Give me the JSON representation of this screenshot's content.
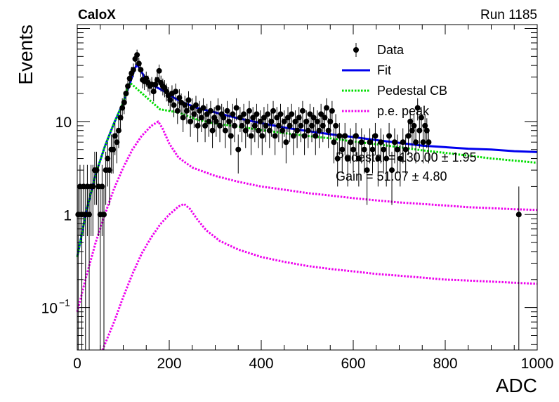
{
  "header": {
    "left_label": "CaloX",
    "right_label": "Run 1185"
  },
  "annotations": {
    "pedestal": "Pedestal = 130.00 ± 1.95",
    "gain": "Gain = 51.07 ± 4.80"
  },
  "colors": {
    "data": "#000000",
    "fit": "#0000ee",
    "pedestal": "#00dd00",
    "pe": "#ee00ee"
  },
  "chart_data": {
    "type": "scatter",
    "xlabel": "ADC",
    "ylabel": "Events",
    "xlim": [
      0,
      1000
    ],
    "ylim": [
      0.035,
      110
    ],
    "yscale": "log",
    "x_ticks": [
      "0",
      "200",
      "400",
      "600",
      "800",
      "1000"
    ],
    "y_ticks": [
      {
        "value": 0.1,
        "label": "10",
        "sup": "−1"
      },
      {
        "value": 1,
        "label": "1",
        "sup": ""
      },
      {
        "value": 10,
        "label": "10",
        "sup": ""
      }
    ],
    "legend": {
      "position": "top-right",
      "entries": [
        {
          "key": "data",
          "label": "Data"
        },
        {
          "key": "fit",
          "label": "Fit"
        },
        {
          "key": "pedestal",
          "label": "Pedestal CB"
        },
        {
          "key": "pe",
          "label": "p.e. peak"
        }
      ]
    },
    "series": [
      {
        "name": "Data",
        "key": "data",
        "kind": "points_with_errors",
        "points": [
          [
            2,
            1
          ],
          [
            6,
            2
          ],
          [
            10,
            1
          ],
          [
            14,
            2
          ],
          [
            18,
            1
          ],
          [
            22,
            2
          ],
          [
            26,
            1
          ],
          [
            30,
            2
          ],
          [
            34,
            2
          ],
          [
            38,
            3
          ],
          [
            42,
            3
          ],
          [
            46,
            2
          ],
          [
            50,
            1
          ],
          [
            54,
            2
          ],
          [
            58,
            1
          ],
          [
            62,
            3
          ],
          [
            66,
            4
          ],
          [
            70,
            3
          ],
          [
            74,
            5
          ],
          [
            78,
            5
          ],
          [
            82,
            7
          ],
          [
            86,
            6
          ],
          [
            90,
            8
          ],
          [
            94,
            11
          ],
          [
            98,
            14
          ],
          [
            102,
            16
          ],
          [
            106,
            20
          ],
          [
            110,
            24
          ],
          [
            114,
            29
          ],
          [
            118,
            33
          ],
          [
            122,
            36
          ],
          [
            126,
            47
          ],
          [
            130,
            52
          ],
          [
            134,
            42
          ],
          [
            138,
            36
          ],
          [
            142,
            28
          ],
          [
            146,
            27
          ],
          [
            150,
            29
          ],
          [
            154,
            26
          ],
          [
            158,
            24
          ],
          [
            162,
            25
          ],
          [
            166,
            21
          ],
          [
            170,
            25
          ],
          [
            174,
            28
          ],
          [
            178,
            35
          ],
          [
            182,
            26
          ],
          [
            186,
            24
          ],
          [
            190,
            23
          ],
          [
            194,
            21
          ],
          [
            198,
            19
          ],
          [
            202,
            17
          ],
          [
            206,
            20
          ],
          [
            210,
            15
          ],
          [
            214,
            21
          ],
          [
            218,
            13
          ],
          [
            222,
            18
          ],
          [
            226,
            16
          ],
          [
            230,
            11
          ],
          [
            234,
            15
          ],
          [
            238,
            13
          ],
          [
            242,
            17
          ],
          [
            246,
            10
          ],
          [
            250,
            14
          ],
          [
            254,
            12
          ],
          [
            258,
            15
          ],
          [
            262,
            9
          ],
          [
            266,
            13
          ],
          [
            270,
            11
          ],
          [
            274,
            14
          ],
          [
            278,
            9
          ],
          [
            282,
            12
          ],
          [
            286,
            10
          ],
          [
            290,
            13
          ],
          [
            294,
            8
          ],
          [
            298,
            11
          ],
          [
            302,
            10
          ],
          [
            306,
            14
          ],
          [
            310,
            9
          ],
          [
            314,
            12
          ],
          [
            318,
            11
          ],
          [
            322,
            8
          ],
          [
            326,
            13
          ],
          [
            330,
            10
          ],
          [
            334,
            7
          ],
          [
            338,
            12
          ],
          [
            342,
            9
          ],
          [
            346,
            14
          ],
          [
            350,
            5
          ],
          [
            354,
            11
          ],
          [
            358,
            9
          ],
          [
            362,
            12
          ],
          [
            366,
            8
          ],
          [
            370,
            10
          ],
          [
            374,
            13
          ],
          [
            378,
            7
          ],
          [
            382,
            11
          ],
          [
            386,
            9
          ],
          [
            390,
            12
          ],
          [
            394,
            8
          ],
          [
            398,
            10
          ],
          [
            402,
            7
          ],
          [
            406,
            11
          ],
          [
            410,
            9
          ],
          [
            414,
            12
          ],
          [
            418,
            8
          ],
          [
            422,
            10
          ],
          [
            426,
            13
          ],
          [
            430,
            7
          ],
          [
            434,
            11
          ],
          [
            438,
            9
          ],
          [
            442,
            12
          ],
          [
            446,
            8
          ],
          [
            450,
            10
          ],
          [
            454,
            6
          ],
          [
            458,
            11
          ],
          [
            462,
            9
          ],
          [
            466,
            12
          ],
          [
            470,
            7
          ],
          [
            474,
            10
          ],
          [
            478,
            8
          ],
          [
            482,
            11
          ],
          [
            486,
            9
          ],
          [
            490,
            13
          ],
          [
            494,
            7
          ],
          [
            498,
            10
          ],
          [
            502,
            8
          ],
          [
            506,
            12
          ],
          [
            510,
            9
          ],
          [
            514,
            11
          ],
          [
            518,
            7
          ],
          [
            522,
            10
          ],
          [
            526,
            8
          ],
          [
            530,
            12
          ],
          [
            534,
            9
          ],
          [
            538,
            11
          ],
          [
            542,
            14
          ],
          [
            546,
            8
          ],
          [
            550,
            10
          ],
          [
            554,
            13
          ],
          [
            558,
            6
          ],
          [
            562,
            9
          ],
          [
            566,
            4
          ],
          [
            570,
            7
          ],
          [
            576,
            5
          ],
          [
            582,
            7
          ],
          [
            588,
            4
          ],
          [
            594,
            6
          ],
          [
            600,
            5
          ],
          [
            606,
            7
          ],
          [
            612,
            4
          ],
          [
            618,
            6
          ],
          [
            624,
            5
          ],
          [
            630,
            3
          ],
          [
            636,
            6
          ],
          [
            642,
            5
          ],
          [
            648,
            7
          ],
          [
            654,
            4
          ],
          [
            660,
            6
          ],
          [
            666,
            5
          ],
          [
            672,
            4
          ],
          [
            678,
            7
          ],
          [
            684,
            3
          ],
          [
            690,
            6
          ],
          [
            696,
            5
          ],
          [
            702,
            4
          ],
          [
            708,
            6
          ],
          [
            714,
            5
          ],
          [
            720,
            7
          ],
          [
            724,
            10
          ],
          [
            728,
            8
          ],
          [
            732,
            9
          ],
          [
            736,
            6
          ],
          [
            740,
            14
          ],
          [
            744,
            8
          ],
          [
            748,
            11
          ],
          [
            752,
            6
          ],
          [
            756,
            9
          ],
          [
            760,
            8
          ],
          [
            764,
            6
          ],
          [
            960,
            1
          ]
        ]
      },
      {
        "name": "Fit",
        "key": "fit",
        "kind": "line",
        "points": [
          [
            0,
            0.35
          ],
          [
            20,
            1.1
          ],
          [
            40,
            2.7
          ],
          [
            60,
            5.4
          ],
          [
            80,
            9.6
          ],
          [
            100,
            16
          ],
          [
            115,
            26
          ],
          [
            125,
            37
          ],
          [
            130,
            41
          ],
          [
            140,
            34
          ],
          [
            150,
            28
          ],
          [
            160,
            25
          ],
          [
            175,
            23
          ],
          [
            190,
            21
          ],
          [
            210,
            18
          ],
          [
            230,
            16
          ],
          [
            260,
            14
          ],
          [
            300,
            12.5
          ],
          [
            350,
            10.8
          ],
          [
            400,
            9.6
          ],
          [
            450,
            8.6
          ],
          [
            500,
            7.9
          ],
          [
            550,
            7.3
          ],
          [
            600,
            6.8
          ],
          [
            650,
            6.3
          ],
          [
            700,
            5.9
          ],
          [
            750,
            5.5
          ],
          [
            800,
            5.3
          ],
          [
            850,
            5.1
          ],
          [
            900,
            5.0
          ],
          [
            950,
            4.8
          ],
          [
            1000,
            4.7
          ]
        ]
      },
      {
        "name": "Pedestal CB",
        "key": "pedestal",
        "kind": "dotted_line",
        "points": [
          [
            0,
            0.35
          ],
          [
            20,
            1.1
          ],
          [
            40,
            2.7
          ],
          [
            60,
            5.4
          ],
          [
            80,
            9.6
          ],
          [
            100,
            16
          ],
          [
            110,
            23
          ],
          [
            115,
            26
          ],
          [
            180,
            13.5
          ],
          [
            220,
            12.5
          ],
          [
            260,
            10.5
          ],
          [
            300,
            9.5
          ],
          [
            350,
            8.8
          ],
          [
            400,
            8.1
          ],
          [
            450,
            7.5
          ],
          [
            500,
            7.0
          ],
          [
            550,
            6.6
          ],
          [
            600,
            6.1
          ],
          [
            650,
            5.7
          ],
          [
            700,
            5.3
          ],
          [
            750,
            4.9
          ],
          [
            800,
            4.6
          ],
          [
            850,
            4.3
          ],
          [
            900,
            4.0
          ],
          [
            950,
            3.8
          ],
          [
            1000,
            3.6
          ]
        ]
      },
      {
        "name": "p.e. peak",
        "key": "pe",
        "kind": "dotted_line",
        "points": [
          [
            0,
            0.09
          ],
          [
            20,
            0.22
          ],
          [
            40,
            0.5
          ],
          [
            60,
            1.0
          ],
          [
            80,
            1.9
          ],
          [
            100,
            3.2
          ],
          [
            120,
            5.0
          ],
          [
            140,
            7.0
          ],
          [
            160,
            8.9
          ],
          [
            176,
            10.0
          ],
          [
            185,
            8.5
          ],
          [
            200,
            5.8
          ],
          [
            220,
            4.1
          ],
          [
            250,
            3.2
          ],
          [
            300,
            2.6
          ],
          [
            350,
            2.25
          ],
          [
            400,
            2.0
          ],
          [
            450,
            1.85
          ],
          [
            500,
            1.7
          ],
          [
            550,
            1.6
          ],
          [
            600,
            1.5
          ],
          [
            650,
            1.42
          ],
          [
            700,
            1.35
          ],
          [
            750,
            1.3
          ],
          [
            800,
            1.25
          ],
          [
            850,
            1.2
          ],
          [
            900,
            1.17
          ],
          [
            950,
            1.14
          ],
          [
            1000,
            1.12
          ]
        ]
      },
      {
        "name": "p.e. peak",
        "key": "pe",
        "kind": "dotted_line",
        "points": [
          [
            55,
            0.035
          ],
          [
            80,
            0.07
          ],
          [
            100,
            0.13
          ],
          [
            120,
            0.23
          ],
          [
            140,
            0.38
          ],
          [
            160,
            0.56
          ],
          [
            180,
            0.78
          ],
          [
            200,
            1.0
          ],
          [
            220,
            1.22
          ],
          [
            232,
            1.3
          ],
          [
            245,
            1.15
          ],
          [
            260,
            0.9
          ],
          [
            280,
            0.68
          ],
          [
            310,
            0.52
          ],
          [
            350,
            0.42
          ],
          [
            400,
            0.35
          ],
          [
            450,
            0.31
          ],
          [
            500,
            0.28
          ],
          [
            550,
            0.26
          ],
          [
            600,
            0.245
          ],
          [
            650,
            0.23
          ],
          [
            700,
            0.22
          ],
          [
            750,
            0.21
          ],
          [
            800,
            0.2
          ],
          [
            850,
            0.195
          ],
          [
            900,
            0.19
          ],
          [
            950,
            0.185
          ],
          [
            1000,
            0.18
          ]
        ]
      }
    ]
  }
}
